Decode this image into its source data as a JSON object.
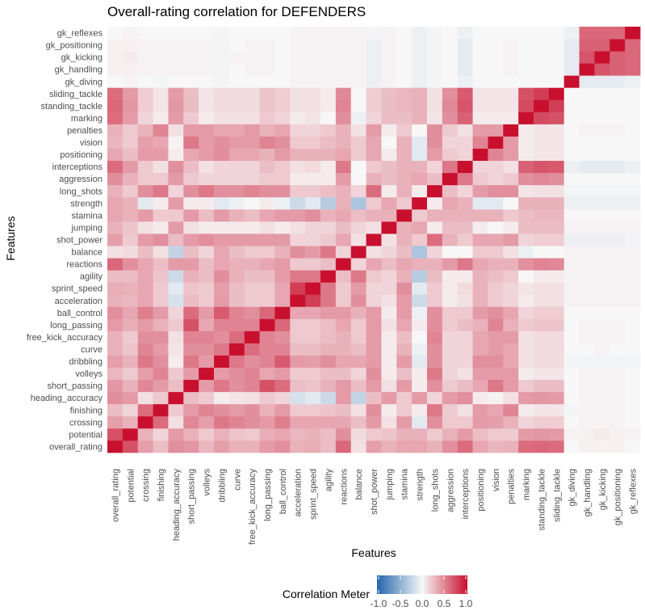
{
  "chart_data": {
    "type": "heatmap",
    "title": "Overall-rating correlation for DEFENDERS",
    "xlabel": "Features",
    "ylabel": "Features",
    "features": [
      "overall_rating",
      "potential",
      "crossing",
      "finishing",
      "heading_accuracy",
      "short_passing",
      "volleys",
      "dribbling",
      "curve",
      "free_kick_accuracy",
      "long_passing",
      "ball_control",
      "acceleration",
      "sprint_speed",
      "agility",
      "reactions",
      "balance",
      "shot_power",
      "jumping",
      "stamina",
      "strength",
      "long_shots",
      "aggression",
      "interceptions",
      "positioning",
      "vision",
      "penalties",
      "marking",
      "standing_tackle",
      "sliding_tackle",
      "gk_diving",
      "gk_handling",
      "gk_kicking",
      "gk_positioning",
      "gk_reflexes"
    ],
    "scale_range": [
      -1,
      1
    ],
    "colors": {
      "low": "#2166ac",
      "mid": "#f7f7f7",
      "high": "#c8102e"
    },
    "legend": {
      "title": "Correlation Meter",
      "ticks": [
        "-1.0",
        "-0.5",
        "0.0",
        "0.5",
        "1.0"
      ],
      "position": "bottom"
    },
    "matrix": [
      [
        1.0,
        0.72,
        0.38,
        0.25,
        0.45,
        0.42,
        0.28,
        0.38,
        0.3,
        0.3,
        0.4,
        0.45,
        0.3,
        0.32,
        0.25,
        0.62,
        0.1,
        0.38,
        0.3,
        0.35,
        0.35,
        0.3,
        0.45,
        0.6,
        0.35,
        0.28,
        0.3,
        0.6,
        0.62,
        0.6,
        0.0,
        0.03,
        0.03,
        0.03,
        0.0
      ],
      [
        0.72,
        1.0,
        0.3,
        0.15,
        0.4,
        0.3,
        0.2,
        0.3,
        0.22,
        0.2,
        0.32,
        0.35,
        0.28,
        0.3,
        0.25,
        0.45,
        0.12,
        0.2,
        0.22,
        0.3,
        0.3,
        0.2,
        0.3,
        0.4,
        0.25,
        0.2,
        0.2,
        0.4,
        0.42,
        0.4,
        0.02,
        0.03,
        0.05,
        0.03,
        0.02
      ],
      [
        0.38,
        0.3,
        1.0,
        0.6,
        0.1,
        0.48,
        0.38,
        0.55,
        0.5,
        0.45,
        0.4,
        0.52,
        0.35,
        0.35,
        0.35,
        0.35,
        0.25,
        0.4,
        0.1,
        0.4,
        -0.1,
        0.45,
        0.2,
        0.2,
        0.4,
        0.38,
        0.3,
        0.15,
        0.18,
        0.18,
        0.0,
        0.02,
        0.02,
        0.02,
        0.0
      ],
      [
        0.25,
        0.15,
        0.6,
        1.0,
        0.2,
        0.4,
        0.5,
        0.45,
        0.4,
        0.45,
        0.3,
        0.4,
        0.2,
        0.2,
        0.22,
        0.25,
        0.1,
        0.45,
        0.05,
        0.2,
        0.05,
        0.55,
        0.2,
        0.1,
        0.4,
        0.35,
        0.5,
        0.05,
        0.08,
        0.08,
        -0.02,
        0.02,
        0.02,
        0.02,
        0.0
      ],
      [
        0.45,
        0.4,
        0.1,
        0.2,
        1.0,
        0.25,
        0.2,
        0.05,
        0.08,
        0.1,
        0.2,
        0.15,
        -0.15,
        -0.1,
        -0.2,
        0.4,
        -0.25,
        0.25,
        0.4,
        0.2,
        0.4,
        0.15,
        0.4,
        0.45,
        0.05,
        0.02,
        0.1,
        0.4,
        0.42,
        0.4,
        0.0,
        0.02,
        0.02,
        0.02,
        0.0
      ],
      [
        0.42,
        0.3,
        0.48,
        0.4,
        0.25,
        1.0,
        0.4,
        0.55,
        0.45,
        0.5,
        0.72,
        0.6,
        0.25,
        0.22,
        0.3,
        0.4,
        0.25,
        0.4,
        0.1,
        0.4,
        0.05,
        0.45,
        0.2,
        0.25,
        0.35,
        0.55,
        0.4,
        0.2,
        0.25,
        0.25,
        0.0,
        0.02,
        0.02,
        0.02,
        0.0
      ],
      [
        0.28,
        0.2,
        0.38,
        0.5,
        0.2,
        0.4,
        1.0,
        0.4,
        0.45,
        0.5,
        0.35,
        0.4,
        0.2,
        0.2,
        0.25,
        0.25,
        0.15,
        0.45,
        0.05,
        0.25,
        0.05,
        0.55,
        0.15,
        0.1,
        0.4,
        0.4,
        0.4,
        0.05,
        0.08,
        0.08,
        0.0,
        0.02,
        0.02,
        0.02,
        0.0
      ],
      [
        0.38,
        0.3,
        0.55,
        0.45,
        0.05,
        0.55,
        0.4,
        1.0,
        0.55,
        0.45,
        0.5,
        0.68,
        0.4,
        0.38,
        0.45,
        0.35,
        0.35,
        0.4,
        0.05,
        0.4,
        -0.1,
        0.45,
        0.15,
        0.15,
        0.45,
        0.45,
        0.35,
        0.1,
        0.12,
        0.12,
        -0.02,
        -0.03,
        -0.03,
        -0.03,
        -0.02
      ],
      [
        0.3,
        0.22,
        0.5,
        0.4,
        0.08,
        0.45,
        0.45,
        0.55,
        1.0,
        0.6,
        0.5,
        0.5,
        0.25,
        0.25,
        0.3,
        0.3,
        0.25,
        0.4,
        0.05,
        0.3,
        -0.05,
        0.45,
        0.15,
        0.15,
        0.35,
        0.4,
        0.35,
        0.1,
        0.12,
        0.12,
        0.0,
        0.0,
        0.02,
        0.0,
        0.0
      ],
      [
        0.3,
        0.2,
        0.45,
        0.45,
        0.1,
        0.5,
        0.5,
        0.45,
        0.6,
        1.0,
        0.5,
        0.45,
        0.2,
        0.2,
        0.25,
        0.3,
        0.2,
        0.4,
        0.05,
        0.25,
        0.0,
        0.5,
        0.15,
        0.15,
        0.35,
        0.4,
        0.4,
        0.1,
        0.12,
        0.12,
        0.0,
        0.02,
        0.02,
        0.02,
        0.0
      ],
      [
        0.4,
        0.32,
        0.4,
        0.3,
        0.2,
        0.72,
        0.35,
        0.5,
        0.5,
        0.5,
        1.0,
        0.62,
        0.2,
        0.2,
        0.25,
        0.35,
        0.2,
        0.4,
        0.1,
        0.35,
        0.05,
        0.45,
        0.2,
        0.25,
        0.3,
        0.5,
        0.3,
        0.2,
        0.22,
        0.22,
        0.0,
        0.02,
        0.02,
        0.02,
        0.0
      ],
      [
        0.45,
        0.35,
        0.52,
        0.4,
        0.15,
        0.6,
        0.4,
        0.68,
        0.5,
        0.45,
        0.62,
        1.0,
        0.35,
        0.35,
        0.4,
        0.4,
        0.3,
        0.4,
        0.05,
        0.4,
        -0.05,
        0.45,
        0.2,
        0.2,
        0.4,
        0.45,
        0.35,
        0.15,
        0.18,
        0.18,
        0.0,
        0.0,
        0.0,
        0.0,
        0.0
      ],
      [
        0.3,
        0.28,
        0.35,
        0.2,
        -0.15,
        0.25,
        0.2,
        0.4,
        0.25,
        0.2,
        0.2,
        0.35,
        1.0,
        0.8,
        0.55,
        0.2,
        0.45,
        0.15,
        0.1,
        0.4,
        -0.2,
        0.2,
        0.05,
        0.1,
        0.3,
        0.2,
        0.15,
        0.05,
        0.1,
        0.1,
        0.02,
        0.02,
        0.02,
        0.02,
        0.02
      ],
      [
        0.32,
        0.3,
        0.35,
        0.2,
        -0.1,
        0.22,
        0.2,
        0.38,
        0.25,
        0.2,
        0.2,
        0.35,
        0.8,
        1.0,
        0.55,
        0.2,
        0.4,
        0.15,
        0.15,
        0.45,
        -0.1,
        0.2,
        0.05,
        0.12,
        0.3,
        0.2,
        0.15,
        0.08,
        0.1,
        0.1,
        0.02,
        0.02,
        0.02,
        0.02,
        0.02
      ],
      [
        0.25,
        0.25,
        0.35,
        0.22,
        -0.2,
        0.3,
        0.25,
        0.45,
        0.3,
        0.25,
        0.25,
        0.4,
        0.55,
        0.55,
        1.0,
        0.25,
        0.55,
        0.2,
        0.15,
        0.3,
        -0.3,
        0.25,
        0.05,
        0.05,
        0.3,
        0.25,
        0.2,
        0.0,
        0.05,
        0.05,
        0.02,
        0.02,
        0.02,
        0.02,
        0.02
      ],
      [
        0.62,
        0.45,
        0.35,
        0.25,
        0.4,
        0.4,
        0.25,
        0.35,
        0.3,
        0.3,
        0.35,
        0.4,
        0.2,
        0.2,
        0.25,
        1.0,
        0.15,
        0.35,
        0.25,
        0.35,
        0.3,
        0.3,
        0.4,
        0.55,
        0.35,
        0.3,
        0.3,
        0.45,
        0.5,
        0.48,
        0.02,
        0.02,
        0.02,
        0.02,
        0.02
      ],
      [
        0.1,
        0.12,
        0.25,
        0.1,
        -0.25,
        0.25,
        0.15,
        0.35,
        0.25,
        0.2,
        0.2,
        0.3,
        0.45,
        0.4,
        0.55,
        0.15,
        1.0,
        0.1,
        0.15,
        0.25,
        -0.35,
        0.15,
        0.0,
        0.0,
        0.2,
        0.2,
        0.1,
        -0.05,
        0.0,
        0.0,
        0.02,
        0.02,
        0.02,
        0.02,
        0.02
      ],
      [
        0.38,
        0.2,
        0.4,
        0.45,
        0.25,
        0.4,
        0.45,
        0.4,
        0.4,
        0.4,
        0.4,
        0.4,
        0.15,
        0.15,
        0.2,
        0.35,
        0.1,
        1.0,
        0.1,
        0.3,
        0.2,
        0.6,
        0.3,
        0.2,
        0.35,
        0.35,
        0.4,
        0.15,
        0.18,
        0.18,
        -0.05,
        -0.05,
        -0.05,
        -0.05,
        -0.02
      ],
      [
        0.3,
        0.22,
        0.1,
        0.05,
        0.4,
        0.1,
        0.05,
        0.05,
        0.05,
        0.05,
        0.1,
        0.05,
        0.1,
        0.15,
        0.15,
        0.25,
        0.15,
        0.1,
        1.0,
        0.3,
        0.35,
        0.05,
        0.25,
        0.25,
        0.05,
        0.0,
        0.05,
        0.25,
        0.25,
        0.25,
        0.02,
        0.02,
        0.02,
        0.02,
        0.02
      ],
      [
        0.35,
        0.3,
        0.4,
        0.2,
        0.2,
        0.4,
        0.25,
        0.4,
        0.3,
        0.25,
        0.35,
        0.4,
        0.4,
        0.45,
        0.3,
        0.35,
        0.25,
        0.3,
        0.3,
        1.0,
        0.2,
        0.3,
        0.3,
        0.3,
        0.3,
        0.3,
        0.2,
        0.25,
        0.28,
        0.28,
        0.0,
        0.0,
        0.0,
        0.0,
        0.0
      ],
      [
        0.35,
        0.3,
        -0.1,
        0.05,
        0.4,
        0.05,
        0.05,
        -0.1,
        -0.05,
        0.0,
        0.05,
        -0.05,
        -0.2,
        -0.1,
        -0.3,
        0.3,
        -0.35,
        0.2,
        0.35,
        0.2,
        1.0,
        0.05,
        0.35,
        0.3,
        -0.1,
        -0.1,
        0.0,
        0.3,
        0.3,
        0.3,
        -0.05,
        -0.05,
        -0.05,
        -0.05,
        -0.05
      ],
      [
        0.3,
        0.2,
        0.45,
        0.55,
        0.15,
        0.45,
        0.55,
        0.45,
        0.45,
        0.5,
        0.45,
        0.45,
        0.2,
        0.2,
        0.25,
        0.3,
        0.15,
        0.6,
        0.05,
        0.3,
        0.05,
        1.0,
        0.25,
        0.15,
        0.4,
        0.45,
        0.45,
        0.08,
        0.1,
        0.1,
        -0.02,
        -0.02,
        -0.02,
        -0.02,
        -0.02
      ],
      [
        0.45,
        0.3,
        0.2,
        0.2,
        0.4,
        0.2,
        0.15,
        0.15,
        0.15,
        0.15,
        0.2,
        0.2,
        0.05,
        0.05,
        0.05,
        0.4,
        0.0,
        0.3,
        0.25,
        0.3,
        0.35,
        0.25,
        1.0,
        0.55,
        0.2,
        0.15,
        0.2,
        0.45,
        0.48,
        0.45,
        0.0,
        0.0,
        0.0,
        0.0,
        0.0
      ],
      [
        0.6,
        0.4,
        0.2,
        0.1,
        0.45,
        0.25,
        0.1,
        0.15,
        0.15,
        0.15,
        0.25,
        0.2,
        0.1,
        0.12,
        0.05,
        0.55,
        0.0,
        0.2,
        0.25,
        0.3,
        0.3,
        0.15,
        0.55,
        1.0,
        0.15,
        0.15,
        0.1,
        0.65,
        0.7,
        0.68,
        -0.05,
        -0.08,
        -0.08,
        -0.08,
        -0.05
      ],
      [
        0.35,
        0.25,
        0.4,
        0.4,
        0.05,
        0.35,
        0.4,
        0.45,
        0.35,
        0.35,
        0.3,
        0.4,
        0.3,
        0.3,
        0.3,
        0.35,
        0.2,
        0.35,
        0.05,
        0.3,
        -0.1,
        0.4,
        0.2,
        0.15,
        1.0,
        0.5,
        0.4,
        0.05,
        0.08,
        0.08,
        0.0,
        0.0,
        0.0,
        0.0,
        0.0
      ],
      [
        0.28,
        0.2,
        0.38,
        0.35,
        0.02,
        0.55,
        0.4,
        0.45,
        0.4,
        0.4,
        0.5,
        0.45,
        0.2,
        0.2,
        0.25,
        0.3,
        0.2,
        0.35,
        0.0,
        0.3,
        -0.1,
        0.45,
        0.15,
        0.15,
        0.5,
        1.0,
        0.4,
        0.05,
        0.08,
        0.08,
        0.0,
        0.0,
        0.0,
        0.0,
        0.0
      ],
      [
        0.3,
        0.2,
        0.3,
        0.5,
        0.1,
        0.4,
        0.4,
        0.35,
        0.35,
        0.4,
        0.3,
        0.35,
        0.15,
        0.15,
        0.2,
        0.3,
        0.1,
        0.4,
        0.05,
        0.2,
        0.0,
        0.45,
        0.2,
        0.1,
        0.4,
        0.4,
        1.0,
        0.05,
        0.08,
        0.08,
        0.0,
        0.02,
        0.02,
        0.02,
        0.0
      ],
      [
        0.6,
        0.4,
        0.15,
        0.05,
        0.4,
        0.2,
        0.05,
        0.1,
        0.1,
        0.1,
        0.2,
        0.15,
        0.05,
        0.08,
        0.0,
        0.45,
        -0.05,
        0.15,
        0.25,
        0.25,
        0.3,
        0.08,
        0.45,
        0.65,
        0.05,
        0.05,
        0.05,
        1.0,
        0.75,
        0.72,
        0.0,
        0.0,
        0.0,
        0.0,
        0.0
      ],
      [
        0.62,
        0.42,
        0.18,
        0.08,
        0.42,
        0.25,
        0.08,
        0.12,
        0.12,
        0.12,
        0.22,
        0.18,
        0.1,
        0.1,
        0.05,
        0.5,
        0.0,
        0.18,
        0.25,
        0.28,
        0.3,
        0.1,
        0.48,
        0.7,
        0.08,
        0.08,
        0.08,
        0.75,
        1.0,
        0.8,
        0.0,
        0.0,
        0.0,
        0.0,
        0.0
      ],
      [
        0.6,
        0.4,
        0.18,
        0.08,
        0.4,
        0.25,
        0.08,
        0.12,
        0.12,
        0.12,
        0.22,
        0.18,
        0.1,
        0.1,
        0.05,
        0.48,
        0.0,
        0.18,
        0.25,
        0.28,
        0.3,
        0.1,
        0.45,
        0.68,
        0.08,
        0.08,
        0.08,
        0.72,
        0.8,
        1.0,
        0.0,
        0.0,
        0.0,
        0.0,
        0.0
      ],
      [
        0.0,
        0.02,
        0.0,
        -0.02,
        0.0,
        0.0,
        0.0,
        -0.02,
        0.0,
        0.0,
        0.0,
        0.0,
        0.02,
        0.02,
        0.02,
        0.02,
        0.02,
        -0.05,
        0.02,
        0.0,
        -0.05,
        -0.02,
        0.0,
        -0.05,
        0.0,
        0.0,
        0.0,
        0.0,
        0.0,
        0.0,
        1.0,
        -0.08,
        -0.08,
        -0.08,
        -0.05
      ],
      [
        0.03,
        0.03,
        0.02,
        0.02,
        0.02,
        0.02,
        0.02,
        -0.03,
        0.0,
        0.02,
        0.02,
        0.0,
        0.02,
        0.02,
        0.02,
        0.02,
        0.02,
        -0.05,
        0.02,
        0.0,
        -0.05,
        -0.02,
        0.0,
        -0.08,
        0.0,
        0.0,
        0.02,
        0.0,
        0.0,
        0.0,
        -0.08,
        1.0,
        0.7,
        0.65,
        0.62
      ],
      [
        0.03,
        0.05,
        0.02,
        0.02,
        0.02,
        0.02,
        0.02,
        -0.03,
        0.02,
        0.02,
        0.02,
        0.0,
        0.02,
        0.02,
        0.02,
        0.02,
        0.02,
        -0.05,
        0.02,
        0.0,
        -0.05,
        -0.02,
        0.0,
        -0.08,
        0.0,
        0.0,
        0.02,
        0.0,
        0.0,
        0.0,
        -0.08,
        0.7,
        1.0,
        0.65,
        0.62
      ],
      [
        0.03,
        0.03,
        0.02,
        0.02,
        0.02,
        0.02,
        0.02,
        -0.03,
        0.0,
        0.02,
        0.02,
        0.0,
        0.02,
        0.02,
        0.02,
        0.02,
        0.02,
        -0.05,
        0.02,
        0.0,
        -0.05,
        -0.02,
        0.0,
        -0.08,
        0.0,
        0.0,
        0.02,
        0.0,
        0.0,
        0.0,
        -0.08,
        0.65,
        0.65,
        1.0,
        0.62
      ],
      [
        0.0,
        0.02,
        0.0,
        0.0,
        0.0,
        0.0,
        0.0,
        -0.02,
        0.0,
        0.0,
        0.0,
        0.0,
        0.02,
        0.02,
        0.02,
        0.02,
        0.02,
        -0.02,
        0.02,
        0.0,
        -0.05,
        -0.02,
        0.0,
        -0.05,
        0.0,
        0.0,
        0.0,
        0.0,
        0.0,
        0.0,
        -0.05,
        0.62,
        0.62,
        0.62,
        1.0
      ]
    ]
  }
}
